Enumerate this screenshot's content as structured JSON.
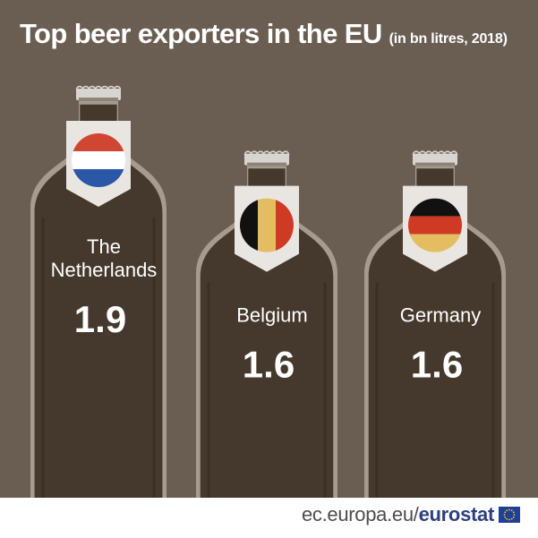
{
  "title": "Top beer exporters in the EU",
  "subtitle": "(in bn litres, 2018)",
  "source": {
    "prefix": "ec.europa.eu/",
    "brand": "eurostat"
  },
  "colors": {
    "background": "#6a5e52",
    "bottle": "#45392d",
    "bottle_rim": "#a59b8f",
    "cap": "#d8d5d0"
  },
  "chart_data": {
    "type": "bar",
    "categories": [
      "The Netherlands",
      "Belgium",
      "Germany"
    ],
    "values": [
      1.9,
      1.6,
      1.6
    ],
    "value_labels": [
      "1.9",
      "1.6",
      "1.6"
    ],
    "flags": [
      "netherlands-flag",
      "belgium-flag",
      "germany-flag"
    ],
    "unit": "bn litres",
    "year": "2018"
  }
}
